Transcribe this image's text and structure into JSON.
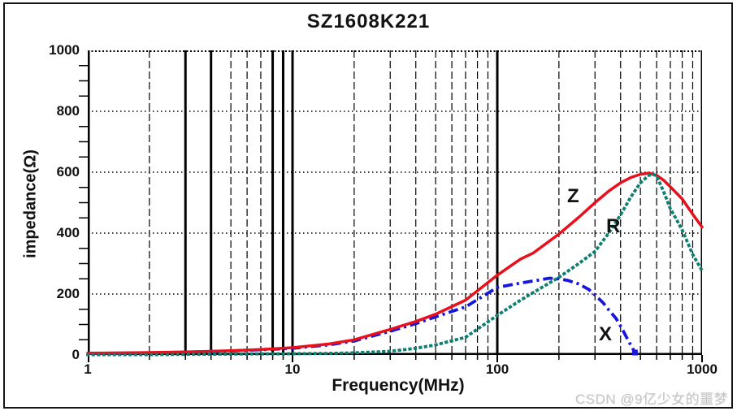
{
  "title": "SZ1608K221",
  "watermark": "CSDN @9亿少女的噩梦",
  "curve_labels": {
    "z": "Z",
    "r": "R",
    "x": "X"
  },
  "colors": {
    "z_curve": "#e8101c",
    "r_curve": "#0e7f70",
    "x_curve": "#1616dd",
    "grid": "#000000",
    "text": "#121212",
    "watermark": "#c5c5c5"
  },
  "chart_data": {
    "type": "line",
    "title": "SZ1608K221",
    "xlabel": "Frequency(MHz)",
    "ylabel": "impedance(Ω)",
    "x_scale": "log",
    "xlim": [
      1,
      1000
    ],
    "ylim": [
      0,
      1000
    ],
    "x_ticks": [
      1,
      10,
      100,
      1000
    ],
    "y_ticks": [
      0,
      200,
      400,
      600,
      800,
      1000
    ],
    "y_minor_tick_step": 50,
    "grid": true,
    "legend_position": "labels-on-curves",
    "series": [
      {
        "name": "Z",
        "style": "solid",
        "color": "#e8101c",
        "points": [
          [
            1,
            6
          ],
          [
            1.5,
            7
          ],
          [
            2,
            8
          ],
          [
            3,
            10
          ],
          [
            4,
            12
          ],
          [
            5,
            14
          ],
          [
            7,
            18
          ],
          [
            10,
            24
          ],
          [
            15,
            36
          ],
          [
            20,
            50
          ],
          [
            30,
            84
          ],
          [
            40,
            110
          ],
          [
            50,
            134
          ],
          [
            70,
            180
          ],
          [
            100,
            262
          ],
          [
            130,
            315
          ],
          [
            150,
            335
          ],
          [
            200,
            397
          ],
          [
            250,
            452
          ],
          [
            300,
            500
          ],
          [
            350,
            538
          ],
          [
            400,
            565
          ],
          [
            450,
            583
          ],
          [
            500,
            593
          ],
          [
            550,
            597
          ],
          [
            600,
            590
          ],
          [
            650,
            573
          ],
          [
            700,
            552
          ],
          [
            800,
            512
          ],
          [
            900,
            462
          ],
          [
            1000,
            420
          ]
        ]
      },
      {
        "name": "R",
        "style": "dotted",
        "color": "#0e7f70",
        "points": [
          [
            1,
            1
          ],
          [
            2,
            1
          ],
          [
            3,
            2
          ],
          [
            5,
            3
          ],
          [
            10,
            4
          ],
          [
            15,
            5
          ],
          [
            20,
            7
          ],
          [
            30,
            12
          ],
          [
            40,
            22
          ],
          [
            50,
            33
          ],
          [
            70,
            58
          ],
          [
            100,
            130
          ],
          [
            130,
            180
          ],
          [
            150,
            205
          ],
          [
            200,
            255
          ],
          [
            250,
            300
          ],
          [
            300,
            340
          ],
          [
            350,
            400
          ],
          [
            400,
            460
          ],
          [
            450,
            520
          ],
          [
            500,
            565
          ],
          [
            550,
            590
          ],
          [
            580,
            592
          ],
          [
            600,
            588
          ],
          [
            650,
            535
          ],
          [
            700,
            480
          ],
          [
            750,
            445
          ],
          [
            800,
            410
          ],
          [
            900,
            330
          ],
          [
            1000,
            277
          ]
        ]
      },
      {
        "name": "X",
        "style": "dash-dot",
        "color": "#1616dd",
        "end_marker": "square",
        "points": [
          [
            1,
            5
          ],
          [
            2,
            7
          ],
          [
            3,
            9
          ],
          [
            5,
            13
          ],
          [
            7,
            17
          ],
          [
            10,
            22
          ],
          [
            15,
            33
          ],
          [
            20,
            46
          ],
          [
            30,
            78
          ],
          [
            40,
            103
          ],
          [
            50,
            125
          ],
          [
            70,
            158
          ],
          [
            100,
            222
          ],
          [
            120,
            232
          ],
          [
            150,
            243
          ],
          [
            180,
            252
          ],
          [
            200,
            250
          ],
          [
            220,
            245
          ],
          [
            250,
            233
          ],
          [
            280,
            215
          ],
          [
            300,
            197
          ],
          [
            330,
            170
          ],
          [
            350,
            148
          ],
          [
            380,
            120
          ],
          [
            400,
            95
          ],
          [
            420,
            68
          ],
          [
            440,
            42
          ],
          [
            455,
            25
          ],
          [
            470,
            8
          ]
        ]
      }
    ]
  }
}
